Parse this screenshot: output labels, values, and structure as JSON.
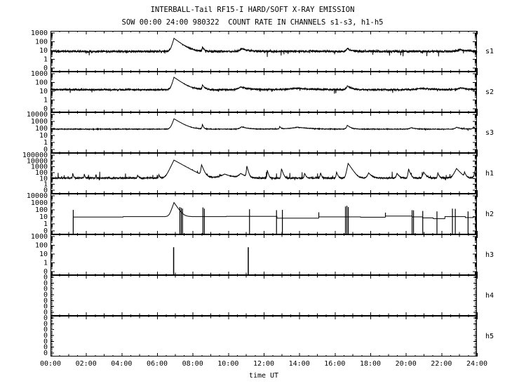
{
  "colors": {
    "foreground": "#000000",
    "background": "#ffffff"
  },
  "chart_data": {
    "type": "line",
    "title": "INTERBALL-Tail RF15-I HARD/SOFT X-RAY EMISSION",
    "subtitle": "SOW 00:00 24:00 980322  COUNT RATE IN CHANNELS s1-s3, h1-h5",
    "xlabel": "time UT",
    "x_range_hours": [
      0,
      24
    ],
    "x_ticks": [
      "00:00",
      "02:00",
      "04:00",
      "06:00",
      "08:00",
      "10:00",
      "12:00",
      "14:00",
      "16:00",
      "18:00",
      "20:00",
      "22:00",
      "24:00"
    ],
    "grid": false,
    "legend": "right-side channel labels",
    "panels": [
      {
        "name": "s1",
        "right_label": "s1",
        "style": "noisy",
        "ylabels": [
          "1000",
          "100",
          "10",
          "1",
          "0"
        ],
        "baseline": 8,
        "noise_sigma": 0.16,
        "down_spike_prob": 0.015,
        "down_spike_mag": 0.55,
        "up_spike_prob": 0,
        "up_spike_mag": 0,
        "events": [
          [
            6.95,
            240,
            0.06,
            0.28
          ],
          [
            8.55,
            18,
            0.02,
            0.08
          ],
          [
            10.75,
            8,
            0.1,
            0.3
          ],
          [
            16.7,
            10,
            0.05,
            0.15
          ],
          [
            23.05,
            5,
            0.15,
            0.3
          ]
        ]
      },
      {
        "name": "s2",
        "right_label": "s2",
        "style": "noisy",
        "ylabels": [
          "1000",
          "100",
          "10",
          "1",
          "0"
        ],
        "baseline": 15,
        "noise_sigma": 0.12,
        "down_spike_prob": 0.01,
        "down_spike_mag": 0.4,
        "up_spike_prob": 0,
        "up_spike_mag": 0,
        "events": [
          [
            6.95,
            380,
            0.06,
            0.3
          ],
          [
            8.55,
            35,
            0.02,
            0.1
          ],
          [
            10.7,
            16,
            0.15,
            0.4
          ],
          [
            13.8,
            7,
            0.5,
            0.8
          ],
          [
            16.7,
            25,
            0.05,
            0.2
          ],
          [
            20.9,
            7,
            0.3,
            0.5
          ],
          [
            23.1,
            9,
            0.2,
            0.4
          ]
        ]
      },
      {
        "name": "s3",
        "right_label": "s3",
        "style": "noisy",
        "ylabels": [
          "10000",
          "1000",
          "100",
          "10",
          "1",
          "0"
        ],
        "baseline": 80,
        "noise_sigma": 0.06,
        "down_spike_prob": 0.008,
        "down_spike_mag": 0.3,
        "up_spike_prob": 0.01,
        "up_spike_mag": 0.2,
        "events": [
          [
            6.95,
            2300,
            0.06,
            0.28
          ],
          [
            8.55,
            280,
            0.02,
            0.05
          ],
          [
            10.75,
            90,
            0.1,
            0.3
          ],
          [
            12.9,
            110,
            0.02,
            0.06
          ],
          [
            13.9,
            70,
            0.4,
            0.6
          ],
          [
            16.7,
            200,
            0.04,
            0.15
          ],
          [
            20.3,
            50,
            0.1,
            0.2
          ],
          [
            22.85,
            70,
            0.08,
            0.2
          ],
          [
            23.8,
            80,
            0.04,
            0.12
          ]
        ]
      },
      {
        "name": "h1",
        "right_label": "h1",
        "style": "noisy",
        "ylabels": [
          "100000",
          "10000",
          "1000",
          "100",
          "10",
          "1",
          "0"
        ],
        "baseline": 12,
        "noise_sigma": 0.15,
        "down_spike_prob": 0.02,
        "down_spike_mag": 0.35,
        "up_spike_prob": 0.02,
        "up_spike_mag": 1.1,
        "events": [
          [
            1.25,
            70,
            0.01,
            0.03
          ],
          [
            1.9,
            50,
            0.01,
            0.03
          ],
          [
            2.55,
            35,
            0.01,
            0.02
          ],
          [
            4.9,
            25,
            0.02,
            0.05
          ],
          [
            6.1,
            35,
            0.02,
            0.04
          ],
          [
            6.95,
            14000,
            0.07,
            0.26
          ],
          [
            8.5,
            2200,
            0.02,
            0.06
          ],
          [
            9.8,
            45,
            0.2,
            0.3
          ],
          [
            10.7,
            60,
            0.1,
            0.2
          ],
          [
            11.05,
            1300,
            0.015,
            0.04
          ],
          [
            12.2,
            250,
            0.012,
            0.04
          ],
          [
            13.0,
            450,
            0.015,
            0.05
          ],
          [
            14.3,
            70,
            0.02,
            0.05
          ],
          [
            15.2,
            80,
            0.02,
            0.04
          ],
          [
            16.1,
            110,
            0.02,
            0.05
          ],
          [
            16.75,
            3800,
            0.03,
            0.1
          ],
          [
            17.9,
            80,
            0.05,
            0.12
          ],
          [
            19.5,
            70,
            0.03,
            0.08
          ],
          [
            20.15,
            350,
            0.02,
            0.06
          ],
          [
            21.0,
            110,
            0.04,
            0.09
          ],
          [
            21.8,
            80,
            0.02,
            0.05
          ],
          [
            22.85,
            500,
            0.07,
            0.13
          ],
          [
            23.3,
            110,
            0.02,
            0.05
          ],
          [
            23.9,
            260,
            0.03,
            0.1
          ]
        ]
      },
      {
        "name": "h2",
        "right_label": "h2",
        "style": "step",
        "ylabels": [
          "10000",
          "1000",
          "100",
          "10",
          "1",
          "0"
        ],
        "steps": [
          [
            1.28,
            9.5
          ],
          [
            4.1,
            11
          ],
          [
            9.9,
            12
          ],
          [
            12.75,
            6.5
          ],
          [
            15.1,
            10
          ],
          [
            17.45,
            9
          ],
          [
            18.85,
            13
          ],
          [
            20.35,
            10
          ],
          [
            20.95,
            7
          ],
          [
            21.55,
            5.5
          ],
          [
            22.2,
            11
          ],
          [
            23.35,
            8
          ],
          [
            23.8,
            11
          ]
        ],
        "events": [
          [
            6.95,
            1100,
            0.06,
            0.12
          ]
        ],
        "spikes": [
          [
            1.28,
            100,
            1
          ],
          [
            7.28,
            250,
            1
          ],
          [
            7.36,
            200,
            1
          ],
          [
            7.43,
            150,
            1
          ],
          [
            8.58,
            220,
            1
          ],
          [
            8.66,
            150,
            1
          ],
          [
            11.2,
            120,
            1
          ],
          [
            12.72,
            90,
            1
          ],
          [
            13.05,
            100,
            1
          ],
          [
            15.1,
            45,
            0
          ],
          [
            16.6,
            300,
            1
          ],
          [
            16.68,
            380,
            1
          ],
          [
            16.76,
            250,
            1
          ],
          [
            18.85,
            40,
            0
          ],
          [
            20.35,
            90,
            1
          ],
          [
            20.43,
            85,
            1
          ],
          [
            20.95,
            70,
            1
          ],
          [
            21.75,
            60,
            1
          ],
          [
            22.62,
            150,
            1
          ],
          [
            22.78,
            140,
            1
          ],
          [
            23.5,
            60,
            1
          ],
          [
            23.95,
            200,
            1
          ]
        ]
      },
      {
        "name": "h3",
        "right_label": "h3",
        "style": "spikes",
        "ylabels": [
          "1000",
          "100",
          "10",
          "1",
          "0"
        ],
        "spikes": [
          [
            6.93,
            60,
            1
          ],
          [
            11.13,
            60,
            1
          ]
        ]
      },
      {
        "name": "h4",
        "right_label": "h4",
        "style": "empty",
        "ylabels": [
          "0",
          "0",
          "0",
          "0",
          "0",
          "0",
          "0"
        ]
      },
      {
        "name": "h5",
        "right_label": "h5",
        "style": "empty",
        "ylabels": [
          "0",
          "0",
          "0",
          "0",
          "0",
          "0",
          "0"
        ]
      }
    ]
  }
}
